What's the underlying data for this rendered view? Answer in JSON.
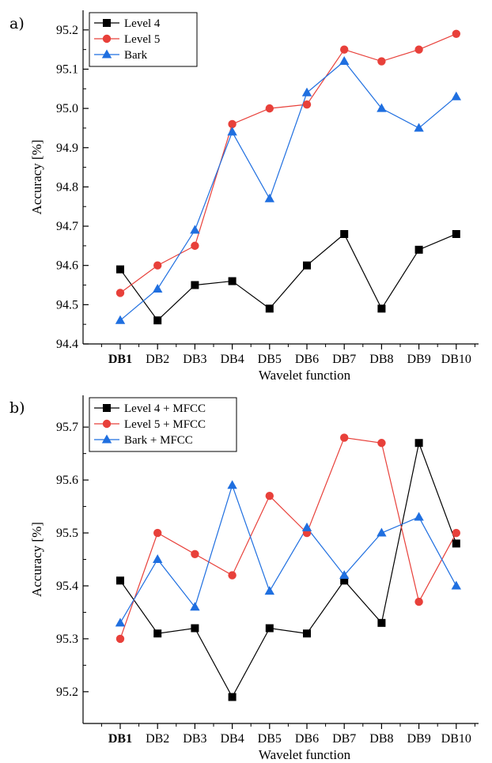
{
  "chart_data": [
    {
      "type": "line",
      "panel_label": "a)",
      "categories": [
        "DB1",
        "DB2",
        "DB3",
        "DB4",
        "DB5",
        "DB6",
        "DB7",
        "DB8",
        "DB9",
        "DB10"
      ],
      "bold_category": "DB1",
      "xlabel": "Wavelet function",
      "ylabel": "Accuracy [%]",
      "ylim": [
        94.4,
        95.25
      ],
      "yticks": [
        94.4,
        94.5,
        94.6,
        94.7,
        94.8,
        94.9,
        95.0,
        95.1,
        95.2
      ],
      "ytick_labels": [
        "94.4",
        "94.5",
        "94.6",
        "94.7",
        "94.8",
        "94.9",
        "95.0",
        "95.1",
        "95.2"
      ],
      "legend_position": "top-left",
      "grid": false,
      "series": [
        {
          "name": "Level 4",
          "marker": "square",
          "color": "#000000",
          "values": [
            94.59,
            94.46,
            94.55,
            94.56,
            94.49,
            94.6,
            94.68,
            94.49,
            94.64,
            94.68
          ]
        },
        {
          "name": "Level 5",
          "marker": "circle",
          "color": "#e8403a",
          "values": [
            94.53,
            94.6,
            94.65,
            94.96,
            95.0,
            95.01,
            95.15,
            95.12,
            95.15,
            95.19
          ]
        },
        {
          "name": "Bark",
          "marker": "triangle",
          "color": "#1f6fe0",
          "values": [
            94.46,
            94.54,
            94.69,
            94.94,
            94.77,
            95.04,
            95.12,
            95.0,
            94.95,
            95.03
          ]
        }
      ]
    },
    {
      "type": "line",
      "panel_label": "b)",
      "categories": [
        "DB1",
        "DB2",
        "DB3",
        "DB4",
        "DB5",
        "DB6",
        "DB7",
        "DB8",
        "DB9",
        "DB10"
      ],
      "bold_category": "DB1",
      "xlabel": "Wavelet function",
      "ylabel": "Accuracy [%]",
      "ylim": [
        95.14,
        95.76
      ],
      "yticks": [
        95.2,
        95.3,
        95.4,
        95.5,
        95.6,
        95.7
      ],
      "ytick_labels": [
        "95.2",
        "95.3",
        "95.4",
        "95.5",
        "95.6",
        "95.7"
      ],
      "legend_position": "top-left",
      "grid": false,
      "series": [
        {
          "name": "Level 4 + MFCC",
          "marker": "square",
          "color": "#000000",
          "values": [
            95.41,
            95.31,
            95.32,
            95.19,
            95.32,
            95.31,
            95.41,
            95.33,
            95.67,
            95.48
          ]
        },
        {
          "name": "Level 5 + MFCC",
          "marker": "circle",
          "color": "#e8403a",
          "values": [
            95.3,
            95.5,
            95.46,
            95.42,
            95.57,
            95.5,
            95.68,
            95.67,
            95.37,
            95.5
          ]
        },
        {
          "name": "Bark + MFCC",
          "marker": "triangle",
          "color": "#1f6fe0",
          "values": [
            95.33,
            95.45,
            95.36,
            95.59,
            95.39,
            95.51,
            95.42,
            95.5,
            95.53,
            95.4
          ]
        }
      ]
    }
  ]
}
